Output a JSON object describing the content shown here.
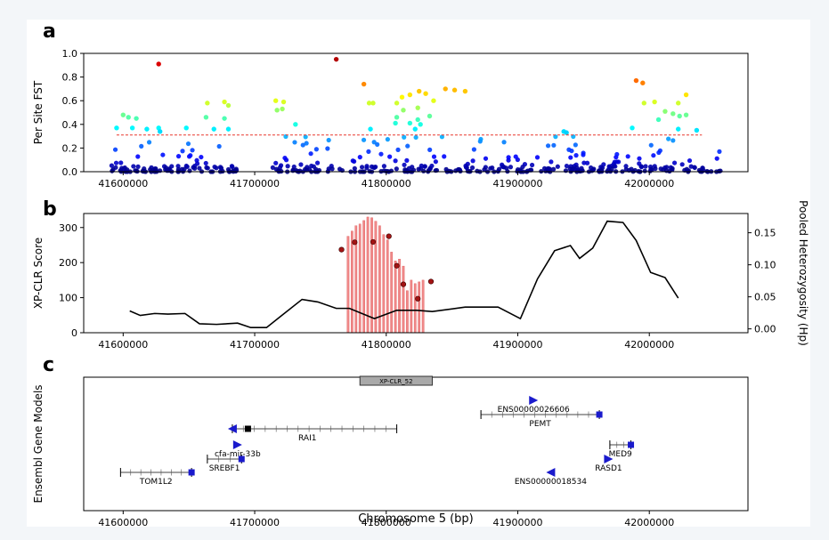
{
  "figure": {
    "panel_labels": [
      "a",
      "b",
      "c"
    ],
    "shared_x": {
      "range": [
        41570000,
        42075000
      ],
      "ticks": [
        41600000,
        41700000,
        41800000,
        41900000,
        42000000
      ],
      "tick_labels": [
        "41600000",
        "41700000",
        "41800000",
        "41900000",
        "42000000"
      ],
      "xlabel": "Chromosome 5 (bp)"
    }
  },
  "chart_data": [
    {
      "panel": "a",
      "type": "scatter",
      "ylabel": "Per Site FST",
      "ylim": [
        0,
        1.0
      ],
      "yticks": [
        0.0,
        0.2,
        0.4,
        0.6,
        0.8,
        1.0
      ],
      "ytick_labels": [
        "0.0",
        "0.2",
        "0.4",
        "0.6",
        "0.8",
        "1.0"
      ],
      "threshold": {
        "value": 0.31,
        "color": "#e8362c",
        "style": "dashed"
      },
      "colormap": "jet",
      "high_points": [
        {
          "x": 41627000,
          "y": 0.91
        },
        {
          "x": 41762000,
          "y": 0.95
        },
        {
          "x": 41783000,
          "y": 0.74
        },
        {
          "x": 41852000,
          "y": 0.69
        },
        {
          "x": 41845000,
          "y": 0.7
        },
        {
          "x": 41860000,
          "y": 0.68
        },
        {
          "x": 41990000,
          "y": 0.77
        },
        {
          "x": 41995000,
          "y": 0.75
        },
        {
          "x": 42028000,
          "y": 0.65
        },
        {
          "x": 41825000,
          "y": 0.68
        },
        {
          "x": 41818000,
          "y": 0.65
        },
        {
          "x": 41830000,
          "y": 0.66
        },
        {
          "x": 41812000,
          "y": 0.63
        },
        {
          "x": 41836000,
          "y": 0.6
        },
        {
          "x": 41664000,
          "y": 0.58
        },
        {
          "x": 41677000,
          "y": 0.59
        },
        {
          "x": 41716000,
          "y": 0.6
        },
        {
          "x": 41722000,
          "y": 0.59
        },
        {
          "x": 41787000,
          "y": 0.58
        },
        {
          "x": 41790000,
          "y": 0.58
        },
        {
          "x": 41808000,
          "y": 0.58
        },
        {
          "x": 41996000,
          "y": 0.58
        },
        {
          "x": 42004000,
          "y": 0.59
        },
        {
          "x": 42022000,
          "y": 0.58
        },
        {
          "x": 41680000,
          "y": 0.56
        },
        {
          "x": 41717000,
          "y": 0.52
        },
        {
          "x": 41721000,
          "y": 0.53
        },
        {
          "x": 41813000,
          "y": 0.52
        },
        {
          "x": 41824000,
          "y": 0.54
        },
        {
          "x": 42012000,
          "y": 0.51
        },
        {
          "x": 42018000,
          "y": 0.49
        },
        {
          "x": 42023000,
          "y": 0.47
        },
        {
          "x": 42028000,
          "y": 0.48
        },
        {
          "x": 41600000,
          "y": 0.48
        },
        {
          "x": 41604000,
          "y": 0.46
        },
        {
          "x": 41610000,
          "y": 0.45
        },
        {
          "x": 41663000,
          "y": 0.46
        },
        {
          "x": 41677000,
          "y": 0.45
        },
        {
          "x": 41808000,
          "y": 0.46
        },
        {
          "x": 41824000,
          "y": 0.44
        },
        {
          "x": 41833000,
          "y": 0.47
        },
        {
          "x": 42007000,
          "y": 0.44
        },
        {
          "x": 41731000,
          "y": 0.4
        },
        {
          "x": 41807000,
          "y": 0.41
        },
        {
          "x": 41818000,
          "y": 0.41
        },
        {
          "x": 41826000,
          "y": 0.4
        },
        {
          "x": 41595000,
          "y": 0.37
        },
        {
          "x": 41607000,
          "y": 0.37
        },
        {
          "x": 41618000,
          "y": 0.36
        },
        {
          "x": 41627000,
          "y": 0.37
        },
        {
          "x": 41648000,
          "y": 0.37
        },
        {
          "x": 41669000,
          "y": 0.36
        },
        {
          "x": 41680000,
          "y": 0.36
        },
        {
          "x": 41788000,
          "y": 0.36
        },
        {
          "x": 41822000,
          "y": 0.36
        },
        {
          "x": 41987000,
          "y": 0.37
        },
        {
          "x": 42022000,
          "y": 0.36
        },
        {
          "x": 42036000,
          "y": 0.35
        },
        {
          "x": 41628000,
          "y": 0.34
        },
        {
          "x": 41935000,
          "y": 0.34
        },
        {
          "x": 41937000,
          "y": 0.33
        }
      ]
    },
    {
      "panel": "b",
      "type": "bar+line",
      "ylabel": "XP-CLR Score",
      "ylim": [
        0,
        340
      ],
      "yticks": [
        0,
        100,
        200,
        300
      ],
      "ytick_labels": [
        "0",
        "100",
        "200",
        "300"
      ],
      "y2label": "Pooled Heterozygosity (Hp)",
      "y2lim": [
        -0.006,
        0.18
      ],
      "y2ticks": [
        0.0,
        0.05,
        0.1,
        0.15
      ],
      "y2tick_labels": [
        "0.00",
        "0.05",
        "0.10",
        "0.15"
      ],
      "xpclr_bars": {
        "color": "#f08a8a",
        "x": [
          41771000,
          41774000,
          41777000,
          41780000,
          41783000,
          41786000,
          41789000,
          41792000,
          41795000,
          41798000,
          41801000,
          41804000,
          41807000,
          41810000,
          41813000,
          41816000,
          41819000,
          41822000,
          41825000,
          41828000
        ],
        "values": [
          275,
          290,
          305,
          310,
          320,
          330,
          328,
          318,
          305,
          280,
          265,
          230,
          205,
          210,
          190,
          120,
          150,
          140,
          145,
          150
        ]
      },
      "xpclr_peaks": [
        {
          "x": 41766000,
          "y": 237
        },
        {
          "x": 41776000,
          "y": 258
        },
        {
          "x": 41790000,
          "y": 259
        },
        {
          "x": 41802000,
          "y": 275
        },
        {
          "x": 41808000,
          "y": 191
        },
        {
          "x": 41813000,
          "y": 138
        },
        {
          "x": 41824000,
          "y": 97
        },
        {
          "x": 41834000,
          "y": 146
        }
      ],
      "heterozygosity": {
        "x": [
          41605000,
          41613000,
          41624000,
          41634000,
          41647000,
          41658000,
          41671000,
          41687000,
          41697000,
          41709000,
          41720000,
          41736000,
          41748000,
          41762000,
          41772000,
          41791000,
          41808000,
          41823000,
          41835000,
          41860000,
          41885000,
          41902000,
          41915000,
          41928000,
          41940000,
          41947000,
          41957000,
          41968000,
          41980000,
          41990000,
          42001000,
          42012000,
          42022000
        ],
        "values": [
          0.028,
          0.021,
          0.024,
          0.023,
          0.024,
          0.008,
          0.007,
          0.009,
          0.002,
          0.002,
          0.02,
          0.046,
          0.042,
          0.032,
          0.032,
          0.016,
          0.029,
          0.029,
          0.027,
          0.034,
          0.034,
          0.016,
          0.078,
          0.122,
          0.13,
          0.11,
          0.126,
          0.168,
          0.166,
          0.138,
          0.088,
          0.08,
          0.048
        ]
      }
    },
    {
      "panel": "c",
      "type": "gene-track",
      "ylabel": "Ensembl Gene Models",
      "region_box": {
        "label": "XP-CLR_52",
        "start": 41780000,
        "end": 41835000
      },
      "genes": [
        {
          "name": "ENS00000026606",
          "arrow_x": 41912000,
          "direction": "right",
          "row": 1
        },
        {
          "name": "PEMT",
          "start": 41872000,
          "end": 41962000,
          "direction": "right",
          "row": 2
        },
        {
          "name": "RAI1",
          "start": 41683000,
          "end": 41808000,
          "direction": "left",
          "row": 3
        },
        {
          "name": "cfa-mir-33b",
          "arrow_x": 41687000,
          "direction": "right",
          "row": 4
        },
        {
          "name": "MED9",
          "start": 41970000,
          "end": 41986000,
          "direction": "right",
          "row": 4
        },
        {
          "name": "SREBF1",
          "start": 41664000,
          "end": 41690000,
          "direction": "right",
          "row": 5
        },
        {
          "name": "RASD1",
          "arrow_x": 41969000,
          "direction": "right",
          "row": 5
        },
        {
          "name": "TOM1L2",
          "start": 41598000,
          "end": 41652000,
          "direction": "right",
          "row": 6
        },
        {
          "name": "ENS00000018534",
          "arrow_x": 41925000,
          "direction": "left",
          "row": 6
        }
      ]
    }
  ]
}
